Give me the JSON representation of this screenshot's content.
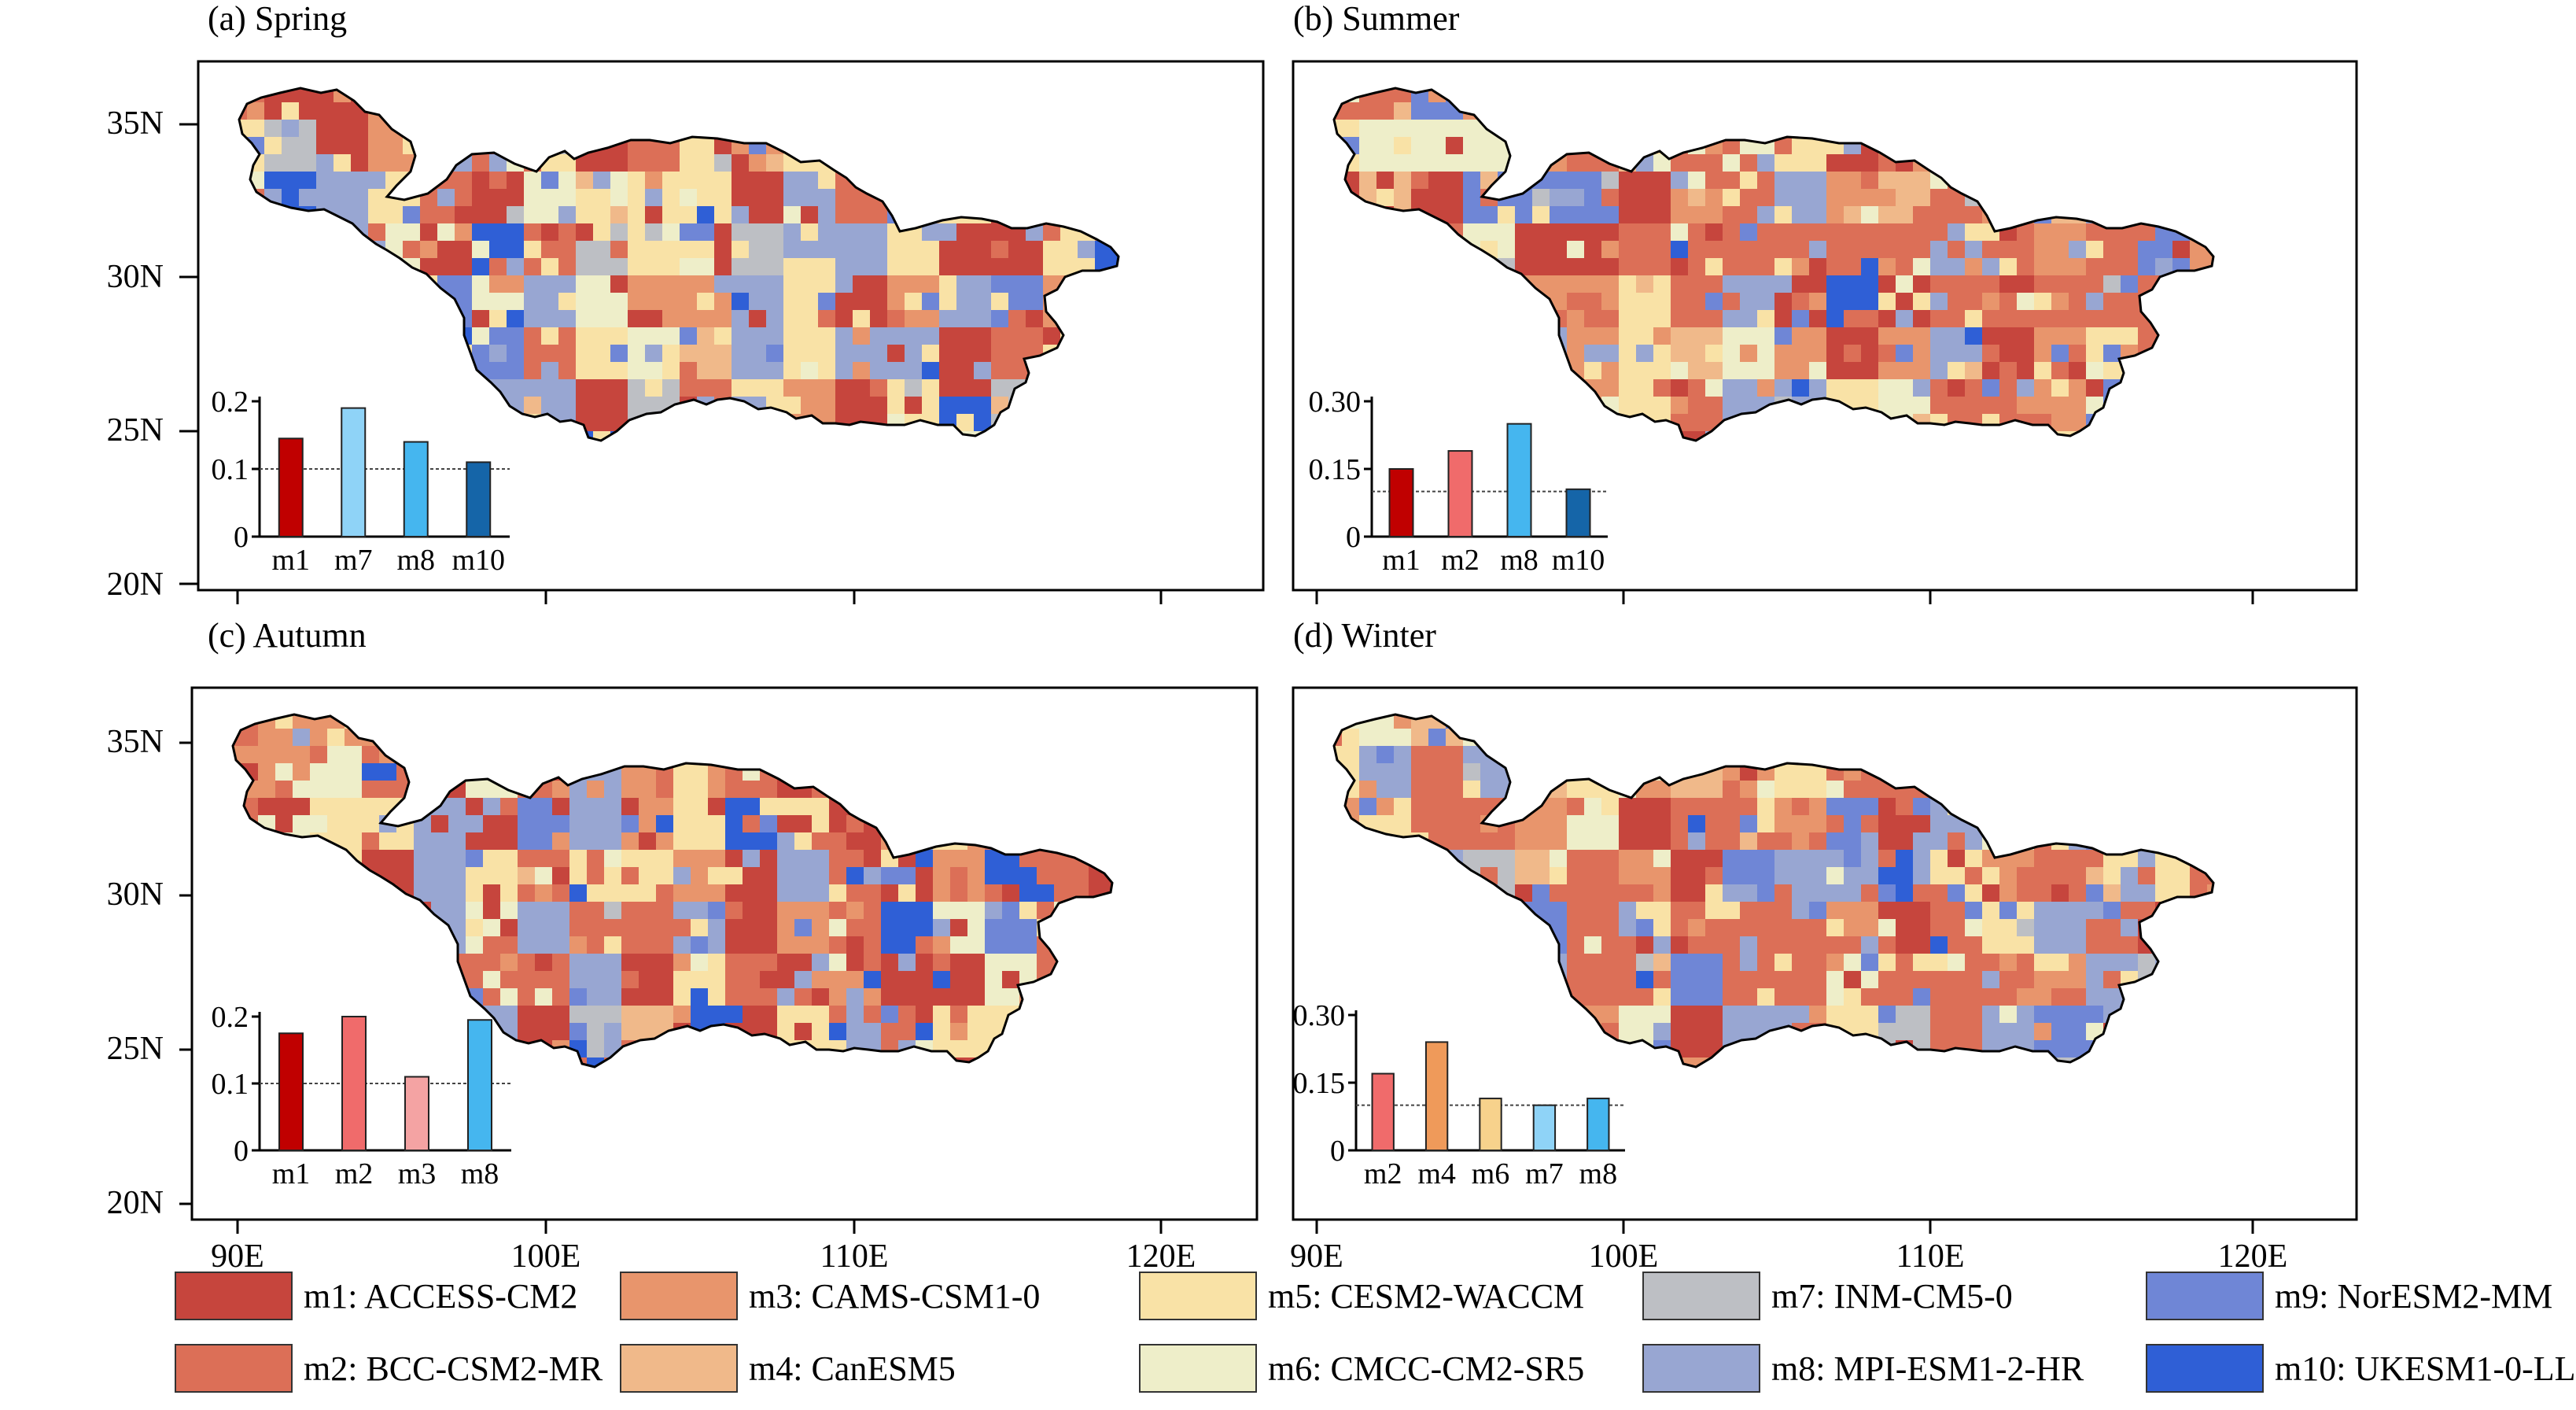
{
  "panels": [
    {
      "id": "a",
      "title": "(a) Spring"
    },
    {
      "id": "b",
      "title": "(b) Summer"
    },
    {
      "id": "c",
      "title": "(c) Autumn"
    },
    {
      "id": "d",
      "title": "(d) Winter"
    }
  ],
  "axes": {
    "lat_labels": [
      "35N",
      "30N",
      "25N",
      "20N"
    ],
    "lon_labels": [
      "90E",
      "100E",
      "110E",
      "120E"
    ]
  },
  "colors": {
    "m1": "#c6453d",
    "m2": "#dc6f57",
    "m3": "#e8956c",
    "m4": "#f0b98a",
    "m5": "#f9e2a6",
    "m6": "#eeeec9",
    "m7": "#bdbfc4",
    "m8": "#98a6d2",
    "m9": "#6f86d6",
    "m10": "#2f5fd6"
  },
  "legend": [
    {
      "key": "m1",
      "label": "m1: ACCESS-CM2"
    },
    {
      "key": "m2",
      "label": "m2: BCC-CSM2-MR"
    },
    {
      "key": "m3",
      "label": "m3: CAMS-CSM1-0"
    },
    {
      "key": "m4",
      "label": "m4: CanESM5"
    },
    {
      "key": "m5",
      "label": "m5: CESM2-WACCM"
    },
    {
      "key": "m6",
      "label": "m6: CMCC-CM2-SR5"
    },
    {
      "key": "m7",
      "label": "m7: INM-CM5-0"
    },
    {
      "key": "m8",
      "label": "m8: MPI-ESM1-2-HR"
    },
    {
      "key": "m9",
      "label": "m9: NorESM2-MM"
    },
    {
      "key": "m10",
      "label": "m10: UKESM1-0-LL"
    }
  ],
  "chart_data": [
    {
      "panel": "a",
      "type": "bar",
      "categories": [
        "m1",
        "m7",
        "m8",
        "m10"
      ],
      "values": [
        0.145,
        0.19,
        0.14,
        0.11
      ],
      "yticks": [
        "0",
        "0.1",
        "0.2"
      ],
      "ylim": [
        0,
        0.2
      ],
      "reference_line": 0.1,
      "bar_colors": [
        "#c00000",
        "#8fd3f7",
        "#45b6ef",
        "#1565a8"
      ]
    },
    {
      "panel": "b",
      "type": "bar",
      "categories": [
        "m1",
        "m2",
        "m8",
        "m10"
      ],
      "values": [
        0.15,
        0.19,
        0.25,
        0.105
      ],
      "yticks": [
        "0",
        "0.15",
        "0.30"
      ],
      "ylim": [
        0,
        0.3
      ],
      "reference_line": 0.1,
      "bar_colors": [
        "#c00000",
        "#f06b6b",
        "#45b6ef",
        "#1565a8"
      ]
    },
    {
      "panel": "c",
      "type": "bar",
      "categories": [
        "m1",
        "m2",
        "m3",
        "m8"
      ],
      "values": [
        0.175,
        0.205,
        0.11,
        0.195
      ],
      "yticks": [
        "0",
        "0.1",
        "0.2"
      ],
      "ylim": [
        0,
        0.2
      ],
      "reference_line": 0.1,
      "bar_colors": [
        "#c00000",
        "#f06b6b",
        "#f4a3a3",
        "#45b6ef"
      ]
    },
    {
      "panel": "d",
      "type": "bar",
      "categories": [
        "m2",
        "m4",
        "m6",
        "m7",
        "m8"
      ],
      "values": [
        0.17,
        0.24,
        0.115,
        0.1,
        0.115
      ],
      "yticks": [
        "0",
        "0.15",
        "0.30"
      ],
      "ylim": [
        0,
        0.3
      ],
      "reference_line": 0.1,
      "bar_colors": [
        "#f06b6b",
        "#ef9a5a",
        "#f7d28c",
        "#8fd3f7",
        "#45b6ef"
      ]
    }
  ]
}
